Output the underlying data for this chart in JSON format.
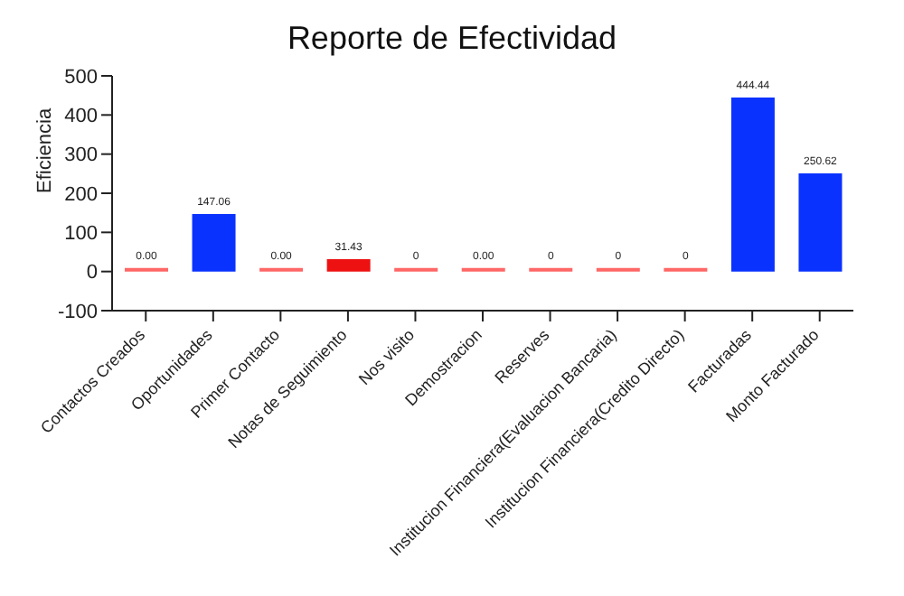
{
  "chart_data": {
    "type": "bar",
    "title": "Reporte de Efectividad",
    "ylabel": "Eficiencia",
    "categories": [
      "Contactos Creados",
      "Oportunidades",
      "Primer Contacto",
      "Notas de Seguimiento",
      "Nos visito",
      "Demostracion",
      "Reserves",
      "Institucion Financiera(Evaluacion Bancaria)",
      "Institucion Financiera(Credito Directo)",
      "Facturadas",
      "Monto Facturado"
    ],
    "values": [
      0,
      147.06,
      0,
      31.43,
      0,
      0,
      0,
      0,
      0,
      444.44,
      250.62
    ],
    "value_labels": [
      "0.00",
      "147.06",
      "0.00",
      "31.43",
      "0",
      "0.00",
      "0",
      "0",
      "0",
      "444.44",
      "250.62"
    ],
    "colors": [
      "#ff6666",
      "#0a32ff",
      "#ff6666",
      "#ee1111",
      "#ff6666",
      "#ff6666",
      "#ff6666",
      "#ff6666",
      "#ff6666",
      "#0a32ff",
      "#0a32ff"
    ],
    "ylim": [
      -100,
      500
    ],
    "yticks": [
      -100,
      0,
      100,
      200,
      300,
      400,
      500
    ],
    "grid": false,
    "legend": false
  }
}
